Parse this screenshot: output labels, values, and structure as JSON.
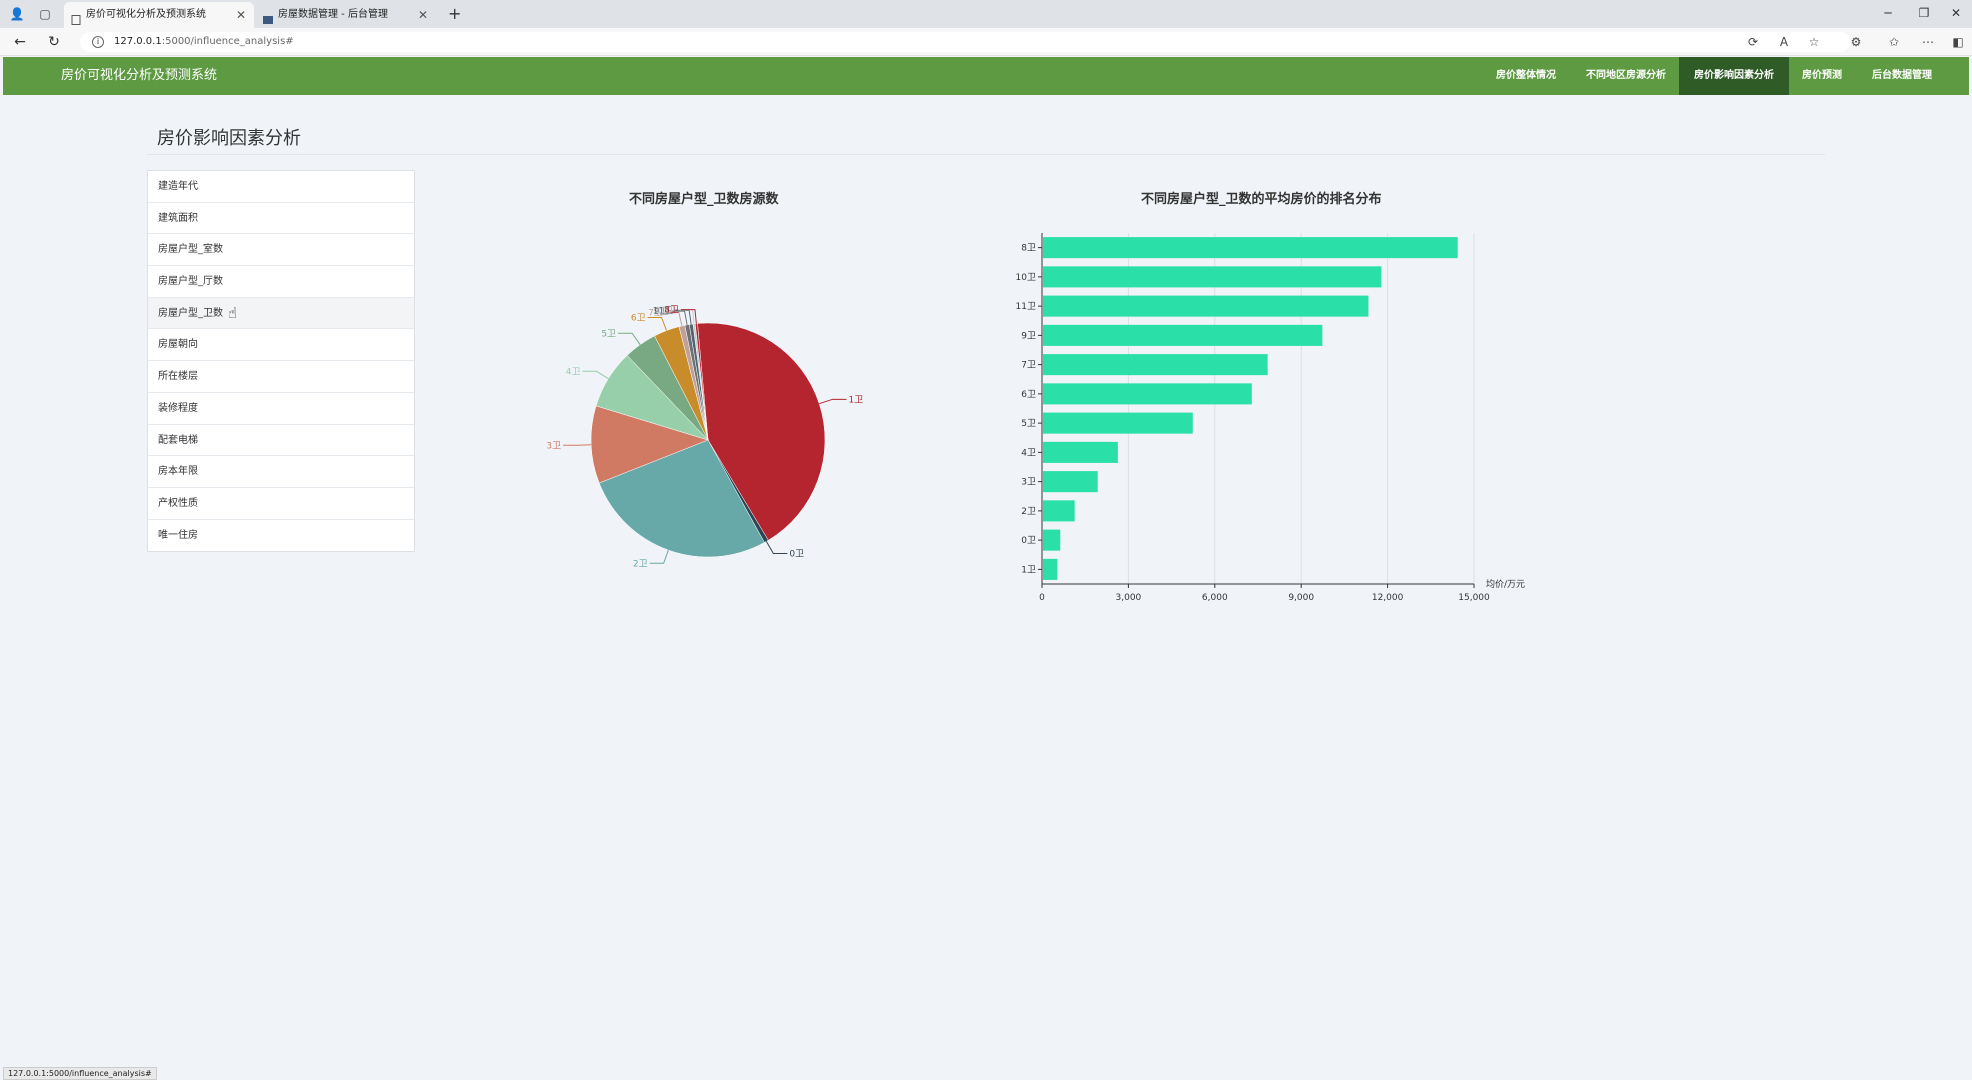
{
  "browser": {
    "tabs": [
      {
        "title": "房价可视化分析及预测系统",
        "active": true
      },
      {
        "title": "房屋数据管理 - 后台管理",
        "active": false
      }
    ],
    "url_host": "127.0.0.1",
    "url_rest": ":5000/influence_analysis#",
    "status_url": "127.0.0.1:5000/influence_analysis#"
  },
  "navbar": {
    "brand": "房价可视化分析及预测系统",
    "items": [
      {
        "label": "房价整体情况",
        "active": false
      },
      {
        "label": "不同地区房源分析",
        "active": false
      },
      {
        "label": "房价影响因素分析",
        "active": true
      },
      {
        "label": "房价预测",
        "active": false
      },
      {
        "label": "后台数据管理",
        "active": false
      }
    ]
  },
  "page": {
    "title": "房价影响因素分析"
  },
  "factors": [
    {
      "label": "建造年代",
      "active": false
    },
    {
      "label": "建筑面积",
      "active": false
    },
    {
      "label": "房屋户型_室数",
      "active": false
    },
    {
      "label": "房屋户型_厅数",
      "active": false
    },
    {
      "label": "房屋户型_卫数",
      "active": true
    },
    {
      "label": "房屋朝向",
      "active": false
    },
    {
      "label": "所在楼层",
      "active": false
    },
    {
      "label": "装修程度",
      "active": false
    },
    {
      "label": "配套电梯",
      "active": false
    },
    {
      "label": "房本年限",
      "active": false
    },
    {
      "label": "产权性质",
      "active": false
    },
    {
      "label": "唯一住房",
      "active": false
    }
  ],
  "colors": {
    "accent_green": "#5d9a42",
    "nav_active": "#2f5b26",
    "bar": "#2be0a8"
  },
  "chart_data": [
    {
      "type": "pie",
      "title": "不同房屋户型_卫数房源数",
      "slices": [
        {
          "name": "1卫",
          "value": 420,
          "color": "#b5252f"
        },
        {
          "name": "0卫",
          "value": 6,
          "color": "#2f4554"
        },
        {
          "name": "2卫",
          "value": 265,
          "color": "#67a8a8"
        },
        {
          "name": "3卫",
          "value": 105,
          "color": "#d07a63"
        },
        {
          "name": "4卫",
          "value": 80,
          "color": "#97cfab"
        },
        {
          "name": "5卫",
          "value": 45,
          "color": "#79a983"
        },
        {
          "name": "6卫",
          "value": 35,
          "color": "#c98c2a"
        },
        {
          "name": "7卫",
          "value": 8,
          "color": "#bda29a"
        },
        {
          "name": "9卫",
          "value": 6,
          "color": "#6e7074"
        },
        {
          "name": "11卫",
          "value": 5,
          "color": "#546570"
        },
        {
          "name": "10卫",
          "value": 3,
          "color": "#c4ccd3"
        },
        {
          "name": "8卫",
          "value": 3,
          "color": "#b5252f"
        }
      ]
    },
    {
      "type": "bar",
      "orientation": "horizontal",
      "title": "不同房屋户型_卫数的平均房价的排名分布",
      "categories": [
        "8卫",
        "10卫",
        "11卫",
        "9卫",
        "7卫",
        "6卫",
        "5卫",
        "4卫",
        "3卫",
        "2卫",
        "0卫",
        "1卫"
      ],
      "values": [
        14400,
        11750,
        11300,
        9700,
        7800,
        7250,
        5200,
        2600,
        1900,
        1100,
        600,
        500
      ],
      "xlabel": "均价/万元",
      "xlim": [
        0,
        15000
      ],
      "xticks": [
        "0",
        "3,000",
        "6,000",
        "9,000",
        "12,000",
        "15,000"
      ]
    }
  ]
}
